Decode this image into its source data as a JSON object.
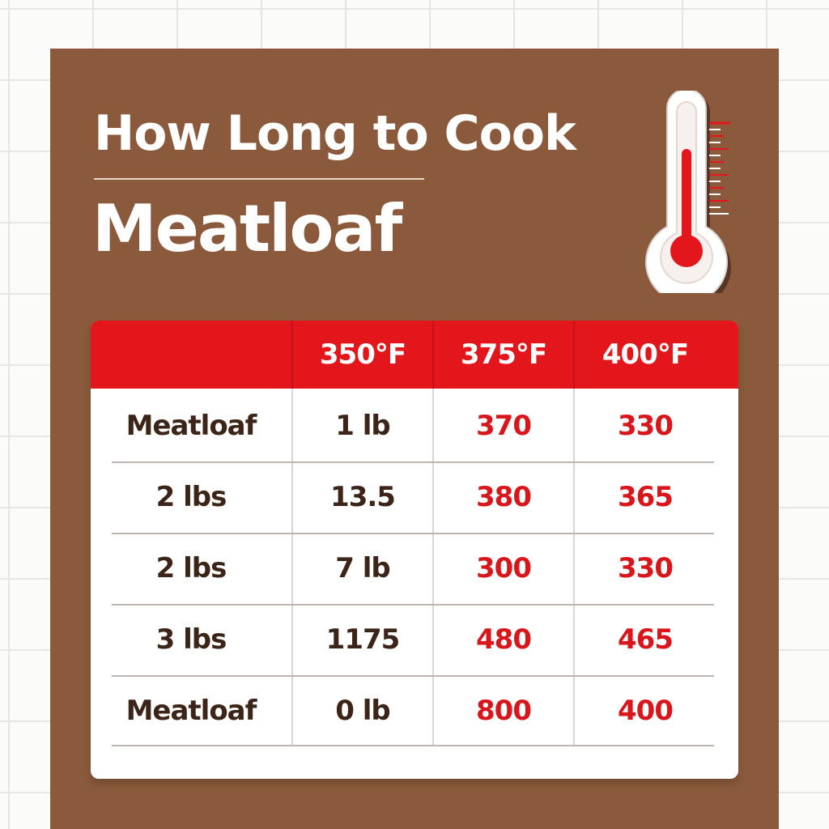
{
  "title": {
    "line1": "How Long to Cook",
    "line2": "Meatloaf"
  },
  "colors": {
    "panel": "#8b5a3c",
    "accent_red": "#e3161c",
    "dark_text": "#3c2518",
    "background": "#fbfbfa"
  },
  "icons": {
    "thermometer": "thermometer-icon"
  },
  "table": {
    "headers": [
      "",
      "350°F",
      "375°F",
      "400°F"
    ],
    "rows": [
      {
        "label": "Meatloaf",
        "weight": "1 lb",
        "t375": "370",
        "t400": "330"
      },
      {
        "label": "2 lbs",
        "weight": "13.5",
        "t375": "380",
        "t400": "365"
      },
      {
        "label": "2 lbs",
        "weight": "7 lb",
        "t375": "300",
        "t400": "330"
      },
      {
        "label": "3 lbs",
        "weight": "1175",
        "t375": "480",
        "t400": "465"
      },
      {
        "label": "Meatloaf",
        "weight": "0 lb",
        "t375": "800",
        "t400": "400"
      }
    ]
  }
}
